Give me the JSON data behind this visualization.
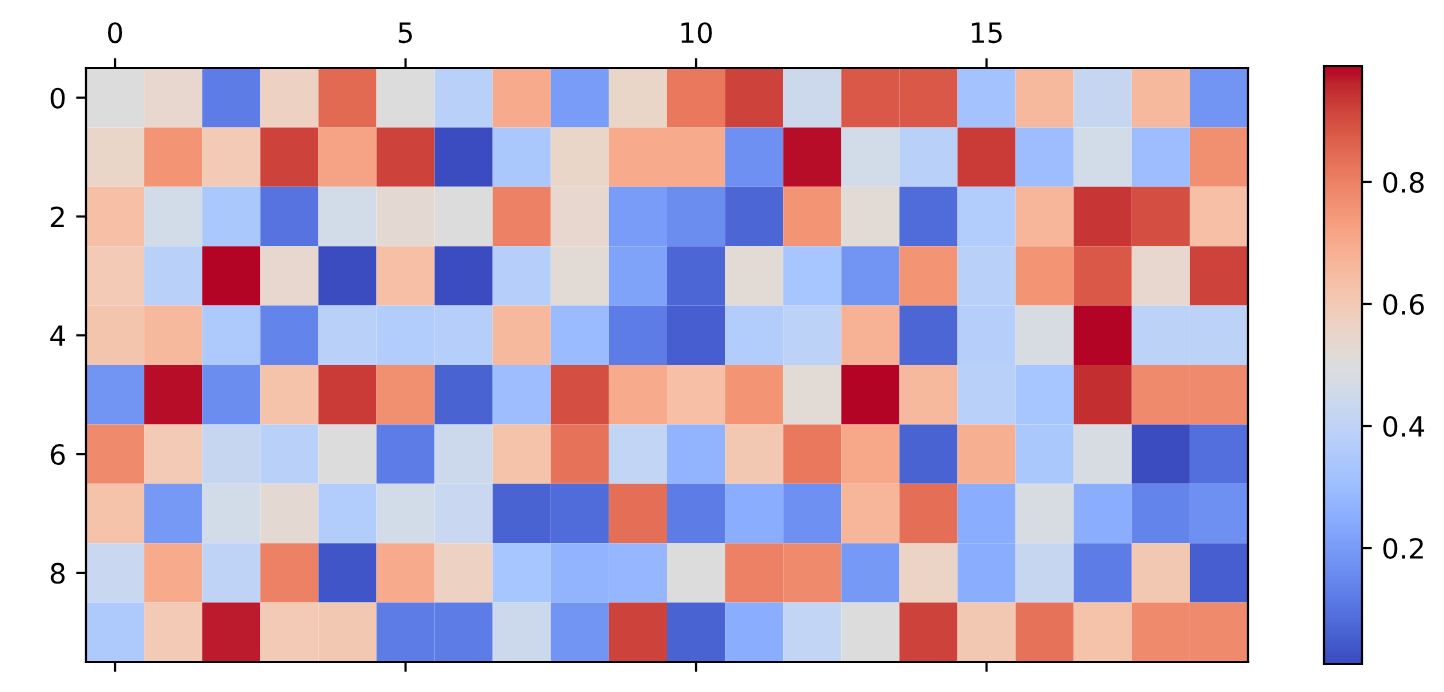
{
  "chart_data": {
    "type": "heatmap",
    "categories": [
      "0",
      null,
      null,
      null,
      null,
      "5",
      null,
      null,
      null,
      null,
      "10",
      null,
      null,
      null,
      null,
      "15",
      null,
      null,
      null,
      null
    ],
    "y_categories": [
      "0",
      null,
      "2",
      null,
      "4",
      null,
      "6",
      null,
      "8",
      null
    ],
    "cells": [
      [
        0.5,
        0.54,
        0.12,
        0.57,
        0.85,
        0.5,
        0.38,
        0.7,
        0.2,
        0.55,
        0.82,
        0.92,
        0.44,
        0.88,
        0.88,
        0.32,
        0.66,
        0.42,
        0.66,
        0.18
      ],
      [
        0.55,
        0.76,
        0.6,
        0.92,
        0.72,
        0.92,
        0.01,
        0.34,
        0.55,
        0.7,
        0.7,
        0.17,
        0.98,
        0.46,
        0.38,
        0.93,
        0.3,
        0.46,
        0.3,
        0.77
      ],
      [
        0.64,
        0.46,
        0.34,
        0.1,
        0.46,
        0.53,
        0.5,
        0.8,
        0.54,
        0.2,
        0.16,
        0.07,
        0.76,
        0.52,
        0.08,
        0.36,
        0.67,
        0.94,
        0.9,
        0.64
      ],
      [
        0.6,
        0.38,
        0.99,
        0.54,
        0.01,
        0.64,
        0.01,
        0.37,
        0.52,
        0.22,
        0.07,
        0.52,
        0.33,
        0.18,
        0.76,
        0.38,
        0.76,
        0.88,
        0.54,
        0.92
      ],
      [
        0.62,
        0.66,
        0.35,
        0.14,
        0.38,
        0.36,
        0.37,
        0.66,
        0.29,
        0.12,
        0.05,
        0.36,
        0.39,
        0.68,
        0.07,
        0.37,
        0.48,
        0.99,
        0.39,
        0.39
      ],
      [
        0.18,
        0.98,
        0.16,
        0.63,
        0.93,
        0.77,
        0.06,
        0.3,
        0.9,
        0.7,
        0.64,
        0.76,
        0.52,
        0.99,
        0.66,
        0.38,
        0.33,
        0.95,
        0.78,
        0.78
      ],
      [
        0.78,
        0.6,
        0.42,
        0.38,
        0.5,
        0.12,
        0.44,
        0.63,
        0.83,
        0.41,
        0.27,
        0.61,
        0.82,
        0.71,
        0.06,
        0.69,
        0.34,
        0.48,
        0.01,
        0.09
      ],
      [
        0.63,
        0.19,
        0.46,
        0.53,
        0.36,
        0.46,
        0.43,
        0.06,
        0.08,
        0.84,
        0.12,
        0.25,
        0.17,
        0.67,
        0.84,
        0.25,
        0.48,
        0.25,
        0.14,
        0.17
      ],
      [
        0.43,
        0.7,
        0.4,
        0.8,
        0.03,
        0.7,
        0.57,
        0.33,
        0.27,
        0.28,
        0.5,
        0.8,
        0.78,
        0.19,
        0.56,
        0.25,
        0.42,
        0.12,
        0.61,
        0.05
      ],
      [
        0.35,
        0.6,
        0.97,
        0.6,
        0.61,
        0.12,
        0.12,
        0.44,
        0.18,
        0.92,
        0.06,
        0.25,
        0.41,
        0.5,
        0.92,
        0.61,
        0.83,
        0.63,
        0.78,
        0.78
      ]
    ],
    "clim": [
      0.01,
      0.99
    ],
    "cticks": [
      0.2,
      0.4,
      0.6,
      0.8
    ]
  }
}
